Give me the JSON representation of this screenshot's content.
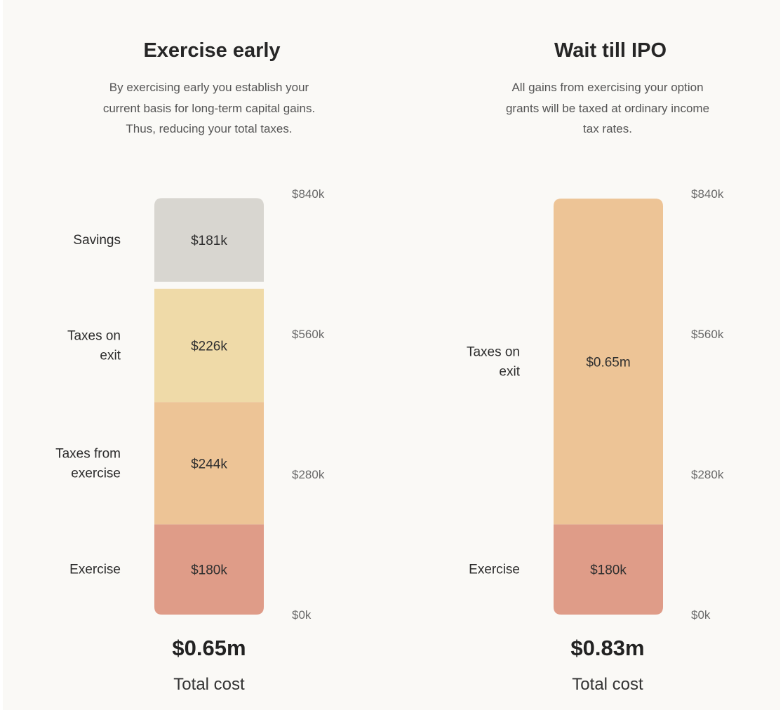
{
  "chart_data": [
    {
      "type": "bar",
      "stacked": true,
      "title": "Exercise early",
      "subtitle": [
        "By exercising early you establish your",
        "current basis for long-term capital gains.",
        "Thus, reducing your total taxes."
      ],
      "ylim": [
        0,
        840
      ],
      "y_ticks": [
        "$840k",
        "$560k",
        "$280k",
        "$0k"
      ],
      "segments": [
        {
          "name": "Exercise",
          "name_lines": [
            "Exercise"
          ],
          "value": 180,
          "display": "$180k",
          "color": "#df9c88"
        },
        {
          "name": "Taxes from exercise",
          "name_lines": [
            "Taxes from",
            "exercise"
          ],
          "value": 244,
          "display": "$244k",
          "color": "#edc496"
        },
        {
          "name": "Taxes on exit",
          "name_lines": [
            "Taxes on",
            "exit"
          ],
          "value": 226,
          "display": "$226k",
          "color": "#efdaa8"
        },
        {
          "name": "Savings",
          "name_lines": [
            "Savings"
          ],
          "value": 181,
          "display": "$181k",
          "color": "#d8d6d0"
        }
      ],
      "total_value": "$0.65m",
      "total_label": "Total cost"
    },
    {
      "type": "bar",
      "stacked": true,
      "title": "Wait till IPO",
      "subtitle": [
        "All gains from exercising your option",
        "grants will be taxed at ordinary income",
        "tax rates."
      ],
      "ylim": [
        0,
        840
      ],
      "y_ticks": [
        "$840k",
        "$560k",
        "$280k",
        "$0k"
      ],
      "segments": [
        {
          "name": "Exercise",
          "name_lines": [
            "Exercise"
          ],
          "value": 180,
          "display": "$180k",
          "color": "#df9c88"
        },
        {
          "name": "Taxes on exit",
          "name_lines": [
            "Taxes on",
            "exit"
          ],
          "value": 650,
          "display": "$0.65m",
          "color": "#edc496"
        }
      ],
      "total_value": "$0.83m",
      "total_label": "Total cost"
    }
  ]
}
